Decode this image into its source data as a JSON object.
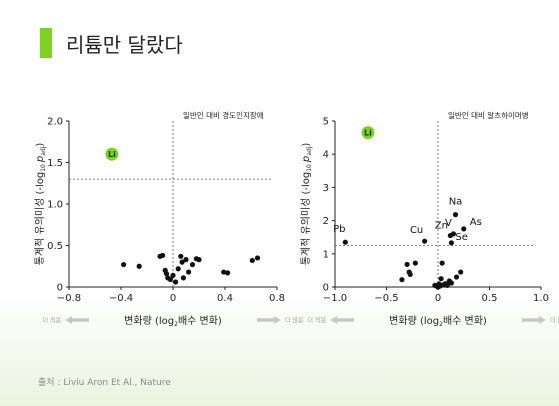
{
  "page": {
    "title": "리튬만 달랐다",
    "source": "출처 : Liviu Aron Et Al., Nature",
    "accent_color": "#7ed321",
    "point_color": "#111111",
    "threshold_color": "#555555"
  },
  "chart_data": [
    {
      "type": "scatter",
      "annotation": "일반인 대비 경도인지장애",
      "xlabel_main": "변화량 (log",
      "xlabel_sub": "2",
      "xlabel_tail": "배수 변화)",
      "x_left_hint": "더 적음",
      "x_right_hint": "더 많음",
      "ylabel_main": "통계적 유의미성 (-log",
      "ylabel_sub": "10",
      "ylabel_p": "p",
      "ylabel_adj": "adj",
      "ylabel_close": ")",
      "xlim": [
        -0.8,
        0.8
      ],
      "ylim": [
        0,
        2.0
      ],
      "xticks": [
        "−0.8",
        "−0.4",
        "0",
        "0.4",
        "0.8"
      ],
      "xtick_values": [
        -0.8,
        -0.4,
        0,
        0.4,
        0.8
      ],
      "yticks": [
        "0",
        "0.5",
        "1.0",
        "1.5",
        "2.0"
      ],
      "ytick_values": [
        0,
        0.5,
        1.0,
        1.5,
        2.0
      ],
      "threshold_y": 1.3,
      "highlight": {
        "label": "Li",
        "x": -0.47,
        "y": 1.6
      },
      "points": [
        {
          "x": -0.38,
          "y": 0.27
        },
        {
          "x": -0.26,
          "y": 0.25
        },
        {
          "x": -0.1,
          "y": 0.37
        },
        {
          "x": -0.08,
          "y": 0.38
        },
        {
          "x": -0.06,
          "y": 0.2
        },
        {
          "x": -0.05,
          "y": 0.16
        },
        {
          "x": -0.04,
          "y": 0.11
        },
        {
          "x": -0.02,
          "y": 0.09
        },
        {
          "x": 0.0,
          "y": 0.14
        },
        {
          "x": 0.02,
          "y": 0.06
        },
        {
          "x": 0.04,
          "y": 0.22
        },
        {
          "x": 0.06,
          "y": 0.37
        },
        {
          "x": 0.07,
          "y": 0.3
        },
        {
          "x": 0.08,
          "y": 0.11
        },
        {
          "x": 0.1,
          "y": 0.33
        },
        {
          "x": 0.12,
          "y": 0.18
        },
        {
          "x": 0.15,
          "y": 0.27
        },
        {
          "x": 0.18,
          "y": 0.34
        },
        {
          "x": 0.2,
          "y": 0.33
        },
        {
          "x": 0.39,
          "y": 0.18
        },
        {
          "x": 0.42,
          "y": 0.17
        },
        {
          "x": 0.61,
          "y": 0.32
        },
        {
          "x": 0.65,
          "y": 0.35
        }
      ],
      "labeled_points": []
    },
    {
      "type": "scatter",
      "annotation": "일반인 대비 알츠하이머병",
      "xlabel_main": "변화량 (log",
      "xlabel_sub": "2",
      "xlabel_tail": "배수 변화)",
      "x_left_hint": "더 적음",
      "x_right_hint": "더 많음",
      "ylabel_main": "통계적 유의미성 (-log",
      "ylabel_sub": "10",
      "ylabel_p": "p",
      "ylabel_adj": "adj",
      "ylabel_close": ")",
      "xlim": [
        -1.0,
        1.0
      ],
      "ylim": [
        0,
        5
      ],
      "xticks": [
        "−1.0",
        "−0.5",
        "0",
        "0.5",
        "1.0"
      ],
      "xtick_values": [
        -1.0,
        -0.5,
        0,
        0.5,
        1.0
      ],
      "yticks": [
        "0",
        "1",
        "2",
        "3",
        "4",
        "5"
      ],
      "ytick_values": [
        0,
        1,
        2,
        3,
        4,
        5
      ],
      "threshold_y": 1.25,
      "highlight": {
        "label": "Li",
        "x": -0.68,
        "y": 4.65
      },
      "points": [
        {
          "x": -0.35,
          "y": 0.22
        },
        {
          "x": -0.3,
          "y": 0.68
        },
        {
          "x": -0.28,
          "y": 0.45
        },
        {
          "x": -0.27,
          "y": 0.38
        },
        {
          "x": -0.22,
          "y": 0.72
        },
        {
          "x": -0.03,
          "y": 0.05
        },
        {
          "x": -0.01,
          "y": 0.02
        },
        {
          "x": 0.0,
          "y": 0.0
        },
        {
          "x": 0.01,
          "y": 0.09
        },
        {
          "x": 0.02,
          "y": 0.03
        },
        {
          "x": 0.03,
          "y": 0.25
        },
        {
          "x": 0.04,
          "y": 0.72
        },
        {
          "x": 0.05,
          "y": 0.06
        },
        {
          "x": 0.07,
          "y": 0.1
        },
        {
          "x": 0.09,
          "y": 0.05
        },
        {
          "x": 0.11,
          "y": 0.18
        },
        {
          "x": 0.13,
          "y": 0.12
        },
        {
          "x": 0.18,
          "y": 0.3
        },
        {
          "x": 0.22,
          "y": 0.45
        }
      ],
      "labeled_points": [
        {
          "label": "Pb",
          "x": -0.9,
          "y": 1.35
        },
        {
          "label": "Cu",
          "x": -0.13,
          "y": 1.38
        },
        {
          "label": "Na",
          "x": 0.17,
          "y": 2.18
        },
        {
          "label": "Zn",
          "x": 0.12,
          "y": 1.55
        },
        {
          "label": "V",
          "x": 0.15,
          "y": 1.6
        },
        {
          "label": "As",
          "x": 0.25,
          "y": 1.75
        },
        {
          "label": "Se",
          "x": 0.13,
          "y": 1.33
        }
      ]
    }
  ]
}
